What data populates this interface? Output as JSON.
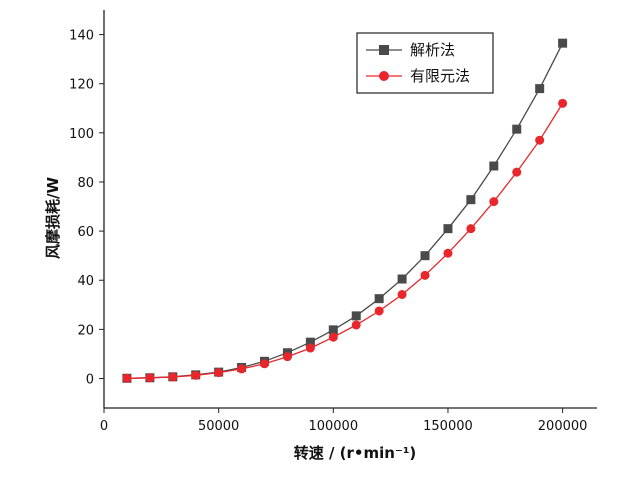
{
  "chart_data": {
    "type": "line",
    "xlabel": "转速 / (r•min⁻¹)",
    "ylabel": "风摩损耗/W",
    "xlim": [
      0,
      215000
    ],
    "ylim": [
      -12,
      150
    ],
    "xticks": [
      0,
      50000,
      100000,
      150000,
      200000
    ],
    "yticks": [
      0,
      20,
      40,
      60,
      80,
      100,
      120,
      140
    ],
    "legend_position": "top-right",
    "x": [
      10000,
      20000,
      30000,
      40000,
      50000,
      60000,
      70000,
      80000,
      90000,
      100000,
      110000,
      120000,
      130000,
      140000,
      150000,
      160000,
      170000,
      180000,
      190000,
      200000
    ],
    "series": [
      {
        "name": "解析法",
        "color": "#4a4a4a",
        "marker": "square",
        "values": [
          0.1,
          0.3,
          0.7,
          1.5,
          2.6,
          4.5,
          7.0,
          10.5,
          14.8,
          19.8,
          25.5,
          32.5,
          40.5,
          50.0,
          61.0,
          72.8,
          86.5,
          101.5,
          118.0,
          136.5
        ]
      },
      {
        "name": "有限元法",
        "color": "#e8262b",
        "marker": "circle",
        "values": [
          0.1,
          0.3,
          0.6,
          1.3,
          2.4,
          3.9,
          6.0,
          8.9,
          12.4,
          16.8,
          21.8,
          27.5,
          34.2,
          42.0,
          51.0,
          61.0,
          72.0,
          84.0,
          97.0,
          112.0
        ]
      }
    ]
  }
}
